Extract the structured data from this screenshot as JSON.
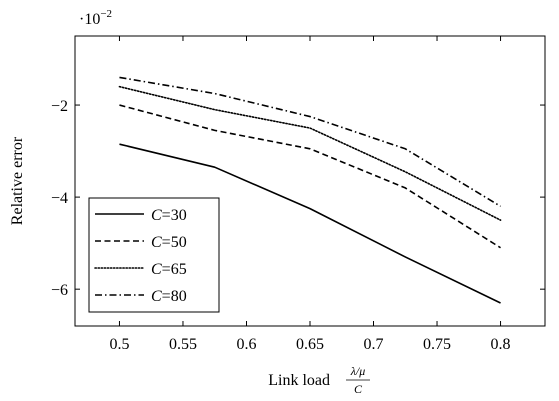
{
  "chart_data": {
    "type": "line",
    "title": "",
    "xlabel": "Link load",
    "xlabel_fraction": {
      "numerator": "λ/μ",
      "denominator": "C"
    },
    "ylabel": "Relative error",
    "y_scale_label": {
      "base": "·10",
      "exponent": "−2"
    },
    "xlim": [
      0.465,
      0.835
    ],
    "ylim": [
      -6.8,
      -0.5
    ],
    "xticks": [
      0.5,
      0.55,
      0.6,
      0.65,
      0.7,
      0.75,
      0.8
    ],
    "xtick_labels": [
      "0.5",
      "0.55",
      "0.6",
      "0.65",
      "0.7",
      "0.75",
      "0.8"
    ],
    "yticks": [
      -6,
      -4,
      -2
    ],
    "ytick_labels": [
      "−6",
      "−4",
      "−2"
    ],
    "grid": false,
    "legend_position": "bottom-left",
    "x": [
      0.5,
      0.575,
      0.65,
      0.725,
      0.8
    ],
    "series": [
      {
        "name": "C=30",
        "label_var": "C",
        "label_val": "=30",
        "dash": "solid",
        "values": [
          -2.85,
          -3.35,
          -4.25,
          -5.3,
          -6.3
        ]
      },
      {
        "name": "C=50",
        "label_var": "C",
        "label_val": "=50",
        "dash": "dashed",
        "values": [
          -2.0,
          -2.55,
          -2.95,
          -3.8,
          -5.1
        ]
      },
      {
        "name": "C=65",
        "label_var": "C",
        "label_val": "=65",
        "dash": "dotted",
        "values": [
          -1.6,
          -2.1,
          -2.5,
          -3.45,
          -4.5
        ]
      },
      {
        "name": "C=80",
        "label_var": "C",
        "label_val": "=80",
        "dash": "dashdot",
        "values": [
          -1.4,
          -1.75,
          -2.25,
          -2.95,
          -4.2
        ]
      }
    ]
  }
}
